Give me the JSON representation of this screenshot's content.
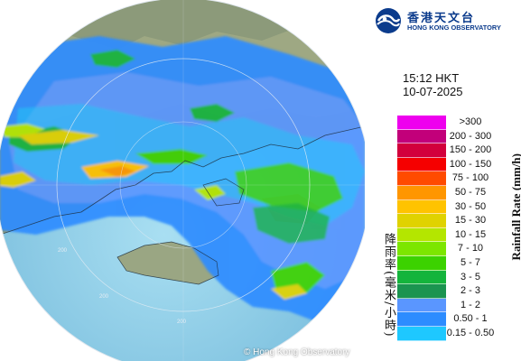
{
  "brand": {
    "name_zh": "香港天文台",
    "name_en": "HONG KONG OBSERVATORY",
    "primary_color": "#0b3b8c"
  },
  "timestamp": {
    "time": "15:12 HKT",
    "date": "10-07-2025"
  },
  "legend": {
    "title_en": "Rainfall Rate (mm/h)",
    "title_zh": "降雨率(毫米/小時)",
    "items": [
      {
        "label": ">300",
        "color": "#ee00ee"
      },
      {
        "label": "200 - 300",
        "color": "#c2007a"
      },
      {
        "label": "150 - 200",
        "color": "#d2003c"
      },
      {
        "label": "100 - 150",
        "color": "#f50000"
      },
      {
        "label": "75 - 100",
        "color": "#ff4b00"
      },
      {
        "label": "50 - 75",
        "color": "#ff9600"
      },
      {
        "label": "30 - 50",
        "color": "#ffc300"
      },
      {
        "label": "15 - 30",
        "color": "#e0d200"
      },
      {
        "label": "10 - 15",
        "color": "#b4e600"
      },
      {
        "label": "7 - 10",
        "color": "#7de600"
      },
      {
        "label": "5 - 7",
        "color": "#3cd200"
      },
      {
        "label": "3 - 5",
        "color": "#14b43c"
      },
      {
        "label": "2 - 3",
        "color": "#1b9450"
      },
      {
        "label": "1 - 2",
        "color": "#5a96ff"
      },
      {
        "label": "0.50 - 1",
        "color": "#2d8cff"
      },
      {
        "label": "0.15 - 0.50",
        "color": "#1ec8ff"
      }
    ]
  },
  "map": {
    "range_ring_labels": [
      "200",
      "200",
      "200"
    ],
    "copyright": "© Hong Kong Observatory"
  }
}
